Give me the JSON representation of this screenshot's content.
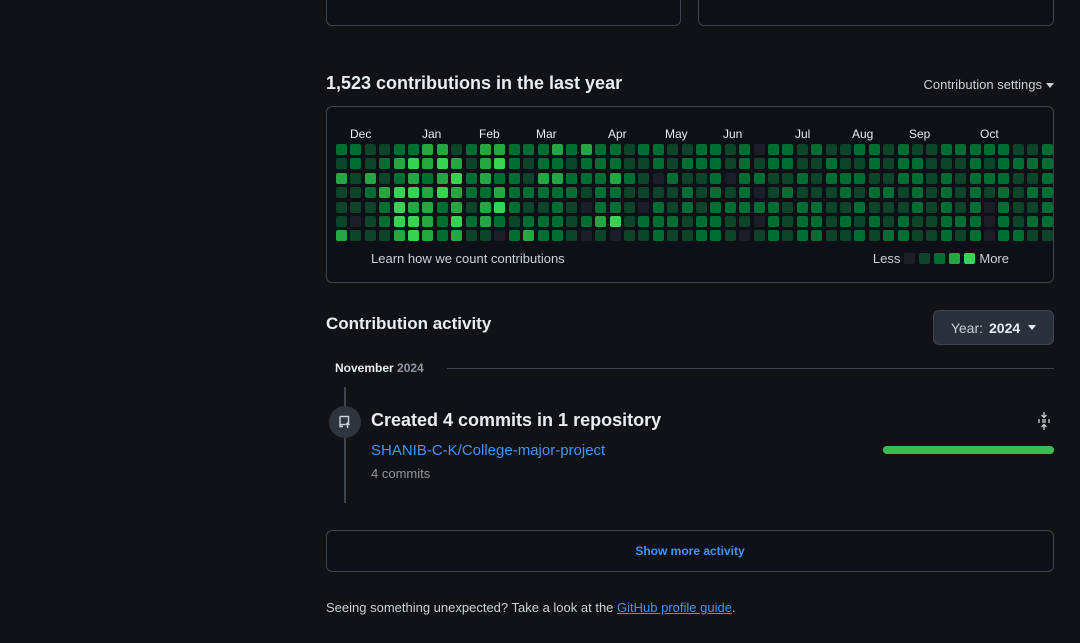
{
  "colors": {
    "level0": "#1a1f27",
    "level1": "#0e4429",
    "level2": "#006d32",
    "level3": "#26a641",
    "level4": "#39d353",
    "accent_link": "#4493f8"
  },
  "contributions": {
    "title": "1,523 contributions in the last year",
    "settings_label": "Contribution settings",
    "months": [
      "Dec",
      "Jan",
      "Feb",
      "Mar",
      "Apr",
      "May",
      "Jun",
      "Jul",
      "Aug",
      "Sep",
      "Oct"
    ],
    "learn_link": "Learn how we count contributions",
    "legend_less": "Less",
    "legend_more": "More",
    "weeks": [
      [
        2,
        1,
        3,
        1,
        1,
        1,
        3
      ],
      [
        2,
        2,
        1,
        1,
        1,
        0,
        1
      ],
      [
        1,
        1,
        3,
        2,
        1,
        1,
        1
      ],
      [
        1,
        2,
        1,
        3,
        2,
        2,
        1
      ],
      [
        2,
        3,
        2,
        4,
        4,
        4,
        3
      ],
      [
        2,
        4,
        3,
        4,
        3,
        4,
        4
      ],
      [
        3,
        3,
        2,
        3,
        3,
        3,
        3
      ],
      [
        3,
        4,
        3,
        4,
        2,
        2,
        2
      ],
      [
        1,
        3,
        4,
        3,
        3,
        4,
        3
      ],
      [
        2,
        1,
        2,
        2,
        1,
        2,
        1
      ],
      [
        3,
        3,
        3,
        2,
        3,
        3,
        1
      ],
      [
        3,
        4,
        2,
        3,
        4,
        2,
        0
      ],
      [
        2,
        2,
        2,
        2,
        2,
        1,
        2
      ],
      [
        2,
        1,
        1,
        2,
        1,
        2,
        3
      ],
      [
        2,
        2,
        3,
        2,
        1,
        2,
        2
      ],
      [
        3,
        2,
        3,
        2,
        2,
        2,
        2
      ],
      [
        2,
        1,
        2,
        2,
        1,
        1,
        1
      ],
      [
        3,
        2,
        2,
        1,
        0,
        2,
        0
      ],
      [
        2,
        2,
        2,
        2,
        2,
        3,
        1
      ],
      [
        2,
        2,
        3,
        2,
        2,
        4,
        0
      ],
      [
        1,
        1,
        2,
        1,
        1,
        1,
        1
      ],
      [
        2,
        1,
        1,
        1,
        0,
        2,
        1
      ],
      [
        2,
        2,
        0,
        1,
        2,
        2,
        2
      ],
      [
        1,
        1,
        2,
        1,
        1,
        2,
        1
      ],
      [
        1,
        2,
        1,
        2,
        2,
        1,
        1
      ],
      [
        2,
        2,
        1,
        1,
        1,
        2,
        2
      ],
      [
        2,
        2,
        2,
        2,
        2,
        2,
        2
      ],
      [
        1,
        1,
        0,
        1,
        2,
        1,
        1
      ],
      [
        2,
        2,
        2,
        2,
        2,
        1,
        0
      ],
      [
        0,
        1,
        2,
        0,
        2,
        0,
        1
      ],
      [
        2,
        2,
        1,
        1,
        2,
        2,
        2
      ],
      [
        2,
        2,
        1,
        2,
        1,
        1,
        1
      ],
      [
        1,
        1,
        2,
        1,
        2,
        2,
        2
      ],
      [
        2,
        1,
        1,
        1,
        2,
        2,
        2
      ],
      [
        1,
        2,
        2,
        1,
        1,
        1,
        1
      ],
      [
        1,
        1,
        2,
        2,
        1,
        2,
        1
      ],
      [
        2,
        1,
        2,
        1,
        2,
        1,
        2
      ],
      [
        2,
        2,
        1,
        2,
        1,
        2,
        1
      ],
      [
        1,
        1,
        1,
        2,
        1,
        1,
        2
      ],
      [
        2,
        2,
        2,
        1,
        1,
        2,
        2
      ],
      [
        1,
        2,
        2,
        2,
        2,
        1,
        1
      ],
      [
        1,
        1,
        1,
        1,
        1,
        1,
        1
      ],
      [
        2,
        1,
        2,
        2,
        2,
        2,
        2
      ],
      [
        2,
        1,
        1,
        1,
        1,
        2,
        1
      ],
      [
        2,
        2,
        2,
        2,
        2,
        2,
        2
      ],
      [
        2,
        1,
        2,
        1,
        0,
        0,
        0
      ],
      [
        2,
        2,
        2,
        2,
        2,
        2,
        2
      ],
      [
        1,
        2,
        1,
        1,
        1,
        1,
        2
      ],
      [
        1,
        2,
        1,
        2,
        1,
        2,
        1
      ],
      [
        2,
        2,
        2,
        2,
        2,
        2,
        1
      ],
      [
        2,
        1,
        1,
        1,
        1,
        1,
        2
      ],
      [
        1,
        2,
        2,
        0,
        0,
        0,
        0
      ]
    ]
  },
  "activity": {
    "title": "Contribution activity",
    "year_prefix": "Year:",
    "year_value": "2024",
    "month": "November",
    "month_year": "2024",
    "commits_title": "Created 4 commits in 1 repository",
    "repo_name": "SHANIB-C-K/College-major-project",
    "commit_count": "4 commits",
    "repo_share": 1.0,
    "show_more": "Show more activity"
  },
  "footer": {
    "text": "Seeing something unexpected? Take a look at the",
    "link": "GitHub profile guide",
    "end": "."
  }
}
